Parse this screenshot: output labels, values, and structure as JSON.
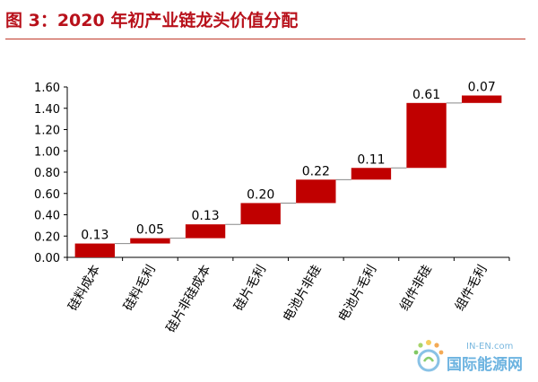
{
  "figure": {
    "title": "图 3：2020 年初产业链龙头价值分配"
  },
  "chart_data": {
    "type": "bar",
    "subtype": "waterfall",
    "title": "",
    "xlabel": "",
    "ylabel": "",
    "categories": [
      "硅料成本",
      "硅料毛利",
      "硅片非硅成本",
      "硅片毛利",
      "电池片非硅",
      "电池片毛利",
      "组件非硅",
      "组件毛利"
    ],
    "values": [
      0.13,
      0.05,
      0.13,
      0.2,
      0.22,
      0.11,
      0.61,
      0.07
    ],
    "value_labels": [
      "0.13",
      "0.05",
      "0.13",
      "0.20",
      "0.22",
      "0.11",
      "0.61",
      "0.07"
    ],
    "ylim": [
      0,
      1.6
    ],
    "yticks": [
      0,
      0.2,
      0.4,
      0.6,
      0.8,
      1.0,
      1.2,
      1.4,
      1.6
    ],
    "ytick_labels": [
      "0.00",
      "0.20",
      "0.40",
      "0.60",
      "0.80",
      "1.00",
      "1.20",
      "1.40",
      "1.60"
    ],
    "grid": false,
    "legend": "none",
    "bar_color": "#c00000"
  },
  "watermark": {
    "domain": "IN-EN.com",
    "brand": "国际能源网",
    "icon": "sunburst-logo-icon"
  }
}
